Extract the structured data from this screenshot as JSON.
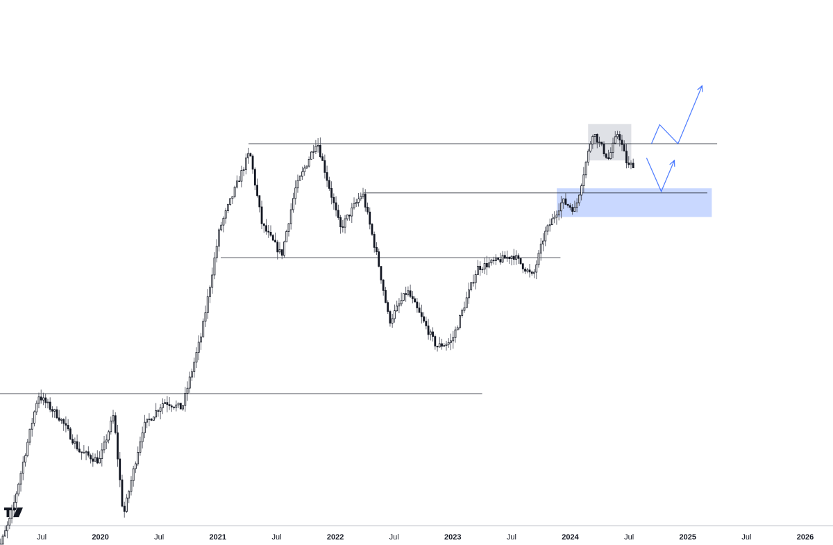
{
  "chart_data": {
    "type": "candlestick",
    "timeframe": "weekly",
    "price_scale": "logarithmic",
    "x_axis": {
      "start": "2019-02",
      "end": "2026-04",
      "ticks": [
        {
          "date": "2019-07",
          "label": "Jul",
          "kind": "month"
        },
        {
          "date": "2020-01",
          "label": "2020",
          "kind": "year"
        },
        {
          "date": "2020-07",
          "label": "Jul",
          "kind": "month"
        },
        {
          "date": "2021-01",
          "label": "2021",
          "kind": "year"
        },
        {
          "date": "2021-07",
          "label": "Jul",
          "kind": "month"
        },
        {
          "date": "2022-01",
          "label": "2022",
          "kind": "year"
        },
        {
          "date": "2022-07",
          "label": "Jul",
          "kind": "month"
        },
        {
          "date": "2023-01",
          "label": "2023",
          "kind": "year"
        },
        {
          "date": "2023-07",
          "label": "Jul",
          "kind": "month"
        },
        {
          "date": "2024-01",
          "label": "2024",
          "kind": "year"
        },
        {
          "date": "2024-07",
          "label": "Jul",
          "kind": "month"
        },
        {
          "date": "2025-01",
          "label": "2025",
          "kind": "year"
        },
        {
          "date": "2025-07",
          "label": "Jul",
          "kind": "month"
        },
        {
          "date": "2026-01",
          "label": "2026",
          "kind": "year"
        }
      ]
    },
    "y_range": [
      2000,
      110000
    ],
    "price_path": [
      {
        "date": "2019-02-01",
        "price": 3500
      },
      {
        "date": "2019-04-01",
        "price": 5000
      },
      {
        "date": "2019-06-24",
        "price": 11500
      },
      {
        "date": "2019-09-01",
        "price": 9800
      },
      {
        "date": "2019-11-01",
        "price": 7800
      },
      {
        "date": "2020-01-01",
        "price": 7300
      },
      {
        "date": "2020-02-15",
        "price": 10000
      },
      {
        "date": "2020-03-15",
        "price": 5000
      },
      {
        "date": "2020-05-15",
        "price": 9200
      },
      {
        "date": "2020-07-20",
        "price": 11000
      },
      {
        "date": "2020-09-15",
        "price": 10500
      },
      {
        "date": "2020-11-15",
        "price": 17500
      },
      {
        "date": "2021-01-10",
        "price": 36000
      },
      {
        "date": "2021-04-12",
        "price": 61000
      },
      {
        "date": "2021-05-20",
        "price": 37000
      },
      {
        "date": "2021-07-20",
        "price": 30000
      },
      {
        "date": "2021-09-01",
        "price": 47000
      },
      {
        "date": "2021-11-08",
        "price": 66000
      },
      {
        "date": "2022-01-20",
        "price": 36000
      },
      {
        "date": "2022-03-28",
        "price": 46000
      },
      {
        "date": "2022-05-15",
        "price": 29000
      },
      {
        "date": "2022-06-20",
        "price": 19000
      },
      {
        "date": "2022-08-15",
        "price": 23500
      },
      {
        "date": "2022-11-15",
        "price": 16000
      },
      {
        "date": "2023-01-01",
        "price": 16600
      },
      {
        "date": "2023-03-20",
        "price": 27500
      },
      {
        "date": "2023-07-10",
        "price": 30000
      },
      {
        "date": "2023-09-10",
        "price": 25800
      },
      {
        "date": "2023-10-15",
        "price": 34500
      },
      {
        "date": "2023-12-10",
        "price": 43500
      },
      {
        "date": "2024-01-20",
        "price": 41000
      },
      {
        "date": "2024-03-14",
        "price": 70000
      },
      {
        "date": "2024-05-01",
        "price": 58000
      },
      {
        "date": "2024-06-01",
        "price": 70000
      },
      {
        "date": "2024-07-01",
        "price": 55000
      },
      {
        "date": "2024-07-15",
        "price": 56000
      }
    ],
    "horizontal_levels": [
      {
        "price": 11600,
        "from": "2019-02",
        "to": "2023-04"
      },
      {
        "price": 29500,
        "from": "2021-01-10",
        "to": "2023-12-01"
      },
      {
        "price": 46000,
        "from": "2022-03-28",
        "to": "2025-03"
      },
      {
        "price": 64500,
        "from": "2021-04-05",
        "to": "2025-04"
      }
    ],
    "zones": [
      {
        "kind": "distribution-range",
        "color": "#d1d4dc",
        "from": "2024-02-26",
        "to": "2024-07-08",
        "price_top": 73800,
        "price_bottom": 57500
      },
      {
        "kind": "support-zone",
        "color": "#2962ff",
        "from": "2023-11-20",
        "to": "2025-03-15",
        "price_top": 47500,
        "price_bottom": 39000
      }
    ],
    "projections": [
      {
        "kind": "bearish-path",
        "color": "#2962ff",
        "points": [
          {
            "date": "2024-08-25",
            "price": 58500
          },
          {
            "date": "2024-10-10",
            "price": 46500
          },
          {
            "date": "2024-11-20",
            "price": 57500
          }
        ]
      },
      {
        "kind": "bullish-path",
        "color": "#2962ff",
        "points": [
          {
            "date": "2024-09-10",
            "price": 64500
          },
          {
            "date": "2024-10-05",
            "price": 73500
          },
          {
            "date": "2024-12-01",
            "price": 64500
          },
          {
            "date": "2025-02-15",
            "price": 96000
          }
        ]
      }
    ],
    "colors": {
      "up": "#ffffff",
      "down": "#131722",
      "annotation": "#2962ff"
    },
    "logo_icon": "tradingview-logo-icon"
  }
}
